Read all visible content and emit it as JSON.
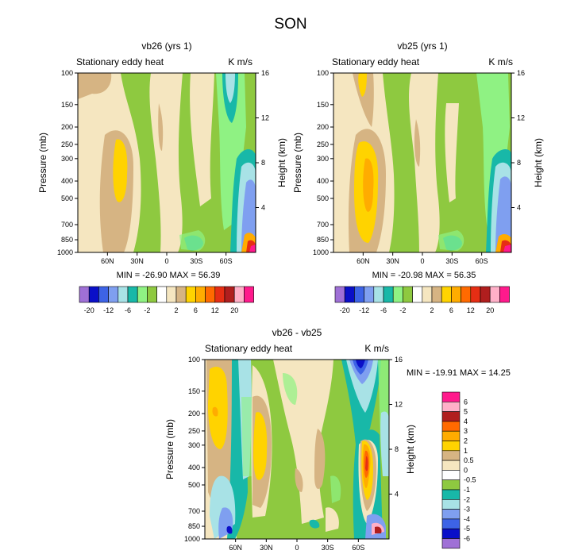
{
  "page_title": "SON",
  "chart_data": [
    {
      "type": "heatmap",
      "id": "left",
      "title": "vb26 (yrs 1)",
      "subtitle_left": "Stationary eddy heat",
      "subtitle_right": "K m/s",
      "ylabel": "Pressure (mb)",
      "ylabel_right": "Height (km)",
      "yticks_left": [
        "100",
        "150",
        "200",
        "250",
        "300",
        "400",
        "500",
        "700",
        "850",
        "1000"
      ],
      "yticks_right": [
        "16",
        "12",
        "8",
        "4"
      ],
      "xticks": [
        "60N",
        "30N",
        "0",
        "30S",
        "60S"
      ],
      "minmax": "MIN = -26.90  MAX = 56.39",
      "colorbar": {
        "orientation": "horizontal",
        "labels": [
          "-20",
          "-12",
          "-6",
          "-2",
          "2",
          "6",
          "12",
          "20"
        ],
        "colors": [
          "#9f70d6",
          "#0a0fc8",
          "#3d63e6",
          "#7f9ff0",
          "#a8e2e6",
          "#18b8a8",
          "#8ff283",
          "#8ec940",
          "#ffffff",
          "#f5e6c0",
          "#d6b483",
          "#ffd300",
          "#ffac00",
          "#ff6a00",
          "#e62e14",
          "#b01e1e",
          "#ffb0c8",
          "#ff1a8c"
        ]
      }
    },
    {
      "type": "heatmap",
      "id": "right",
      "title": "vb25 (yrs 1)",
      "subtitle_left": "Stationary eddy heat",
      "subtitle_right": "K m/s",
      "ylabel": "Pressure (mb)",
      "ylabel_right": "Height (km)",
      "yticks_left": [
        "100",
        "150",
        "200",
        "250",
        "300",
        "400",
        "500",
        "700",
        "850",
        "1000"
      ],
      "yticks_right": [
        "16",
        "12",
        "8",
        "4"
      ],
      "xticks": [
        "60N",
        "30N",
        "0",
        "30S",
        "60S"
      ],
      "minmax": "MIN = -20.98  MAX = 56.35",
      "colorbar": {
        "orientation": "horizontal",
        "labels": [
          "-20",
          "-12",
          "-6",
          "-2",
          "2",
          "6",
          "12",
          "20"
        ],
        "colors": [
          "#9f70d6",
          "#0a0fc8",
          "#3d63e6",
          "#7f9ff0",
          "#a8e2e6",
          "#18b8a8",
          "#8ff283",
          "#8ec940",
          "#ffffff",
          "#f5e6c0",
          "#d6b483",
          "#ffd300",
          "#ffac00",
          "#ff6a00",
          "#e62e14",
          "#b01e1e",
          "#ffb0c8",
          "#ff1a8c"
        ]
      }
    },
    {
      "type": "heatmap",
      "id": "diff",
      "title": "vb26 - vb25",
      "subtitle_left": "Stationary eddy heat",
      "subtitle_right": "K m/s",
      "ylabel": "Pressure (mb)",
      "ylabel_right": "Height (km)",
      "yticks_left": [
        "100",
        "150",
        "200",
        "250",
        "300",
        "400",
        "500",
        "700",
        "850",
        "1000"
      ],
      "yticks_right": [
        "16",
        "12",
        "8",
        "4"
      ],
      "xticks": [
        "60N",
        "30N",
        "0",
        "30S",
        "60S"
      ],
      "minmax": "MIN = -19.91  MAX = 14.25",
      "colorbar": {
        "orientation": "vertical",
        "labels": [
          "6",
          "5",
          "4",
          "3",
          "2",
          "1",
          "0.5",
          "0",
          "-0.5",
          "-1",
          "-2",
          "-3",
          "-4",
          "-5",
          "-6"
        ],
        "colors": [
          "#ff1a8c",
          "#ffb0c8",
          "#b01e1e",
          "#ff6a00",
          "#ffac00",
          "#ffd300",
          "#d6b483",
          "#f5e6c0",
          "#ffffff",
          "#8ec940",
          "#18b8a8",
          "#a8e2e6",
          "#7f9ff0",
          "#3d63e6",
          "#0a0fc8",
          "#9f70d6"
        ]
      }
    }
  ],
  "palette": {
    "purple": "#9f70d6",
    "navy": "#0a0fc8",
    "blue": "#3d63e6",
    "lightblue": "#7f9ff0",
    "paleblue": "#a8e2e6",
    "teal": "#18b8a8",
    "lightgreen": "#8ff283",
    "green": "#8ec940",
    "cream": "#f5e6c0",
    "tan": "#d6b483",
    "yellow": "#ffd300",
    "orange": "#ffac00",
    "darkorange": "#ff6a00",
    "red": "#e62e14",
    "darkred": "#b01e1e",
    "pink": "#ffb0c8",
    "magenta": "#ff1a8c"
  }
}
